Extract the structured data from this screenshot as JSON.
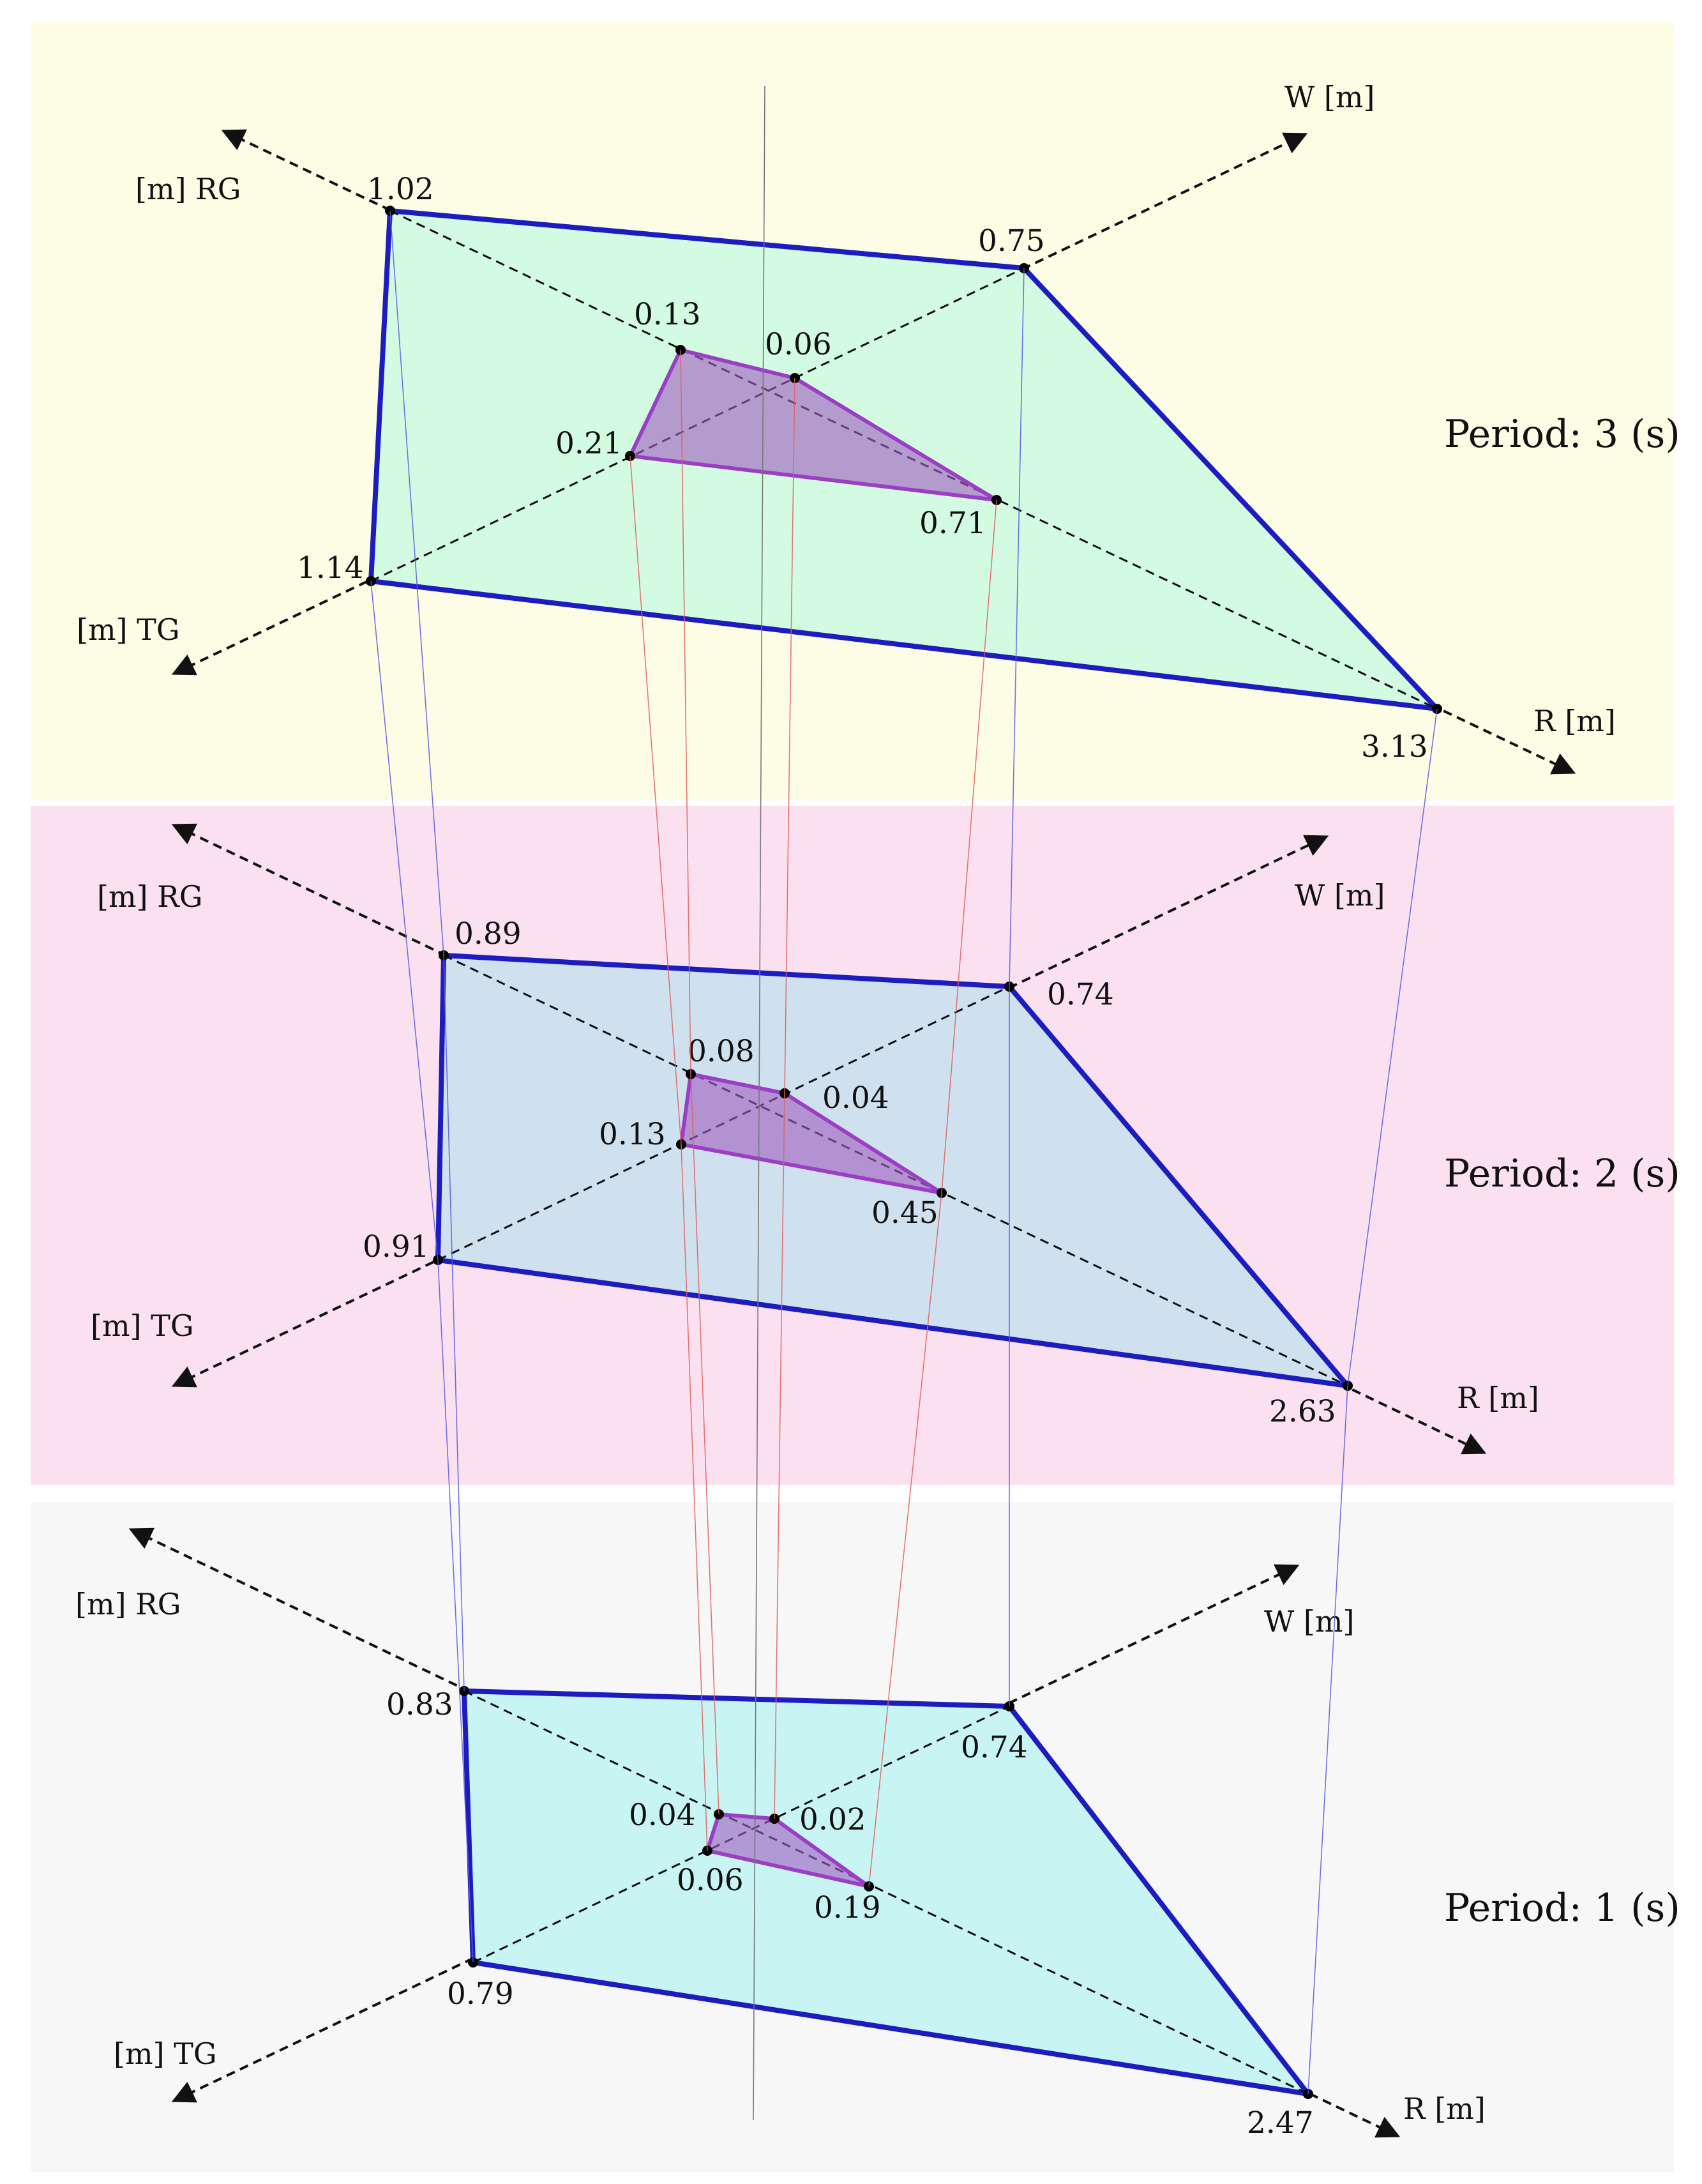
{
  "panels": [
    {
      "id": "period-3",
      "background": "#fdfde5",
      "period_label": "Period: 3 (s)",
      "axis_labels": {
        "rg": "[m] RG",
        "tg": "[m] TG",
        "w": "W [m]",
        "r": "R [m]"
      },
      "outer_values": {
        "rg": "1.02",
        "w": "0.75",
        "tg": "1.14",
        "r": "3.13"
      },
      "inner_values": {
        "rg": "0.13",
        "w": "0.06",
        "tg": "0.21",
        "r": "0.71"
      },
      "outer_fill": "#d2fbe2"
    },
    {
      "id": "period-2",
      "background": "#fbe1ef",
      "period_label": "Period: 2 (s)",
      "axis_labels": {
        "rg": "[m] RG",
        "tg": "[m] TG",
        "w": "W [m]",
        "r": "R [m]"
      },
      "outer_values": {
        "rg": "0.89",
        "w": "0.74",
        "tg": "0.91",
        "r": "2.63"
      },
      "inner_values": {
        "rg": "0.08",
        "w": "0.04",
        "tg": "0.13",
        "r": "0.45"
      },
      "outer_fill": "#cfe0ee"
    },
    {
      "id": "period-1",
      "background": "#f7f7f7",
      "period_label": "Period: 1 (s)",
      "axis_labels": {
        "rg": "[m] RG",
        "tg": "[m] TG",
        "w": "W [m]",
        "r": "R [m]"
      },
      "outer_values": {
        "rg": "0.83",
        "w": "0.74",
        "tg": "0.79",
        "r": "2.47"
      },
      "inner_values": {
        "rg": "0.04",
        "w": "0.02",
        "tg": "0.06",
        "r": "0.19"
      },
      "outer_fill": "#c8f5f4"
    }
  ],
  "colors": {
    "outer_stroke": "#1d1dbf",
    "inner_stroke": "#9a3fc4",
    "inner_fill": "#a05bc0",
    "axis": "#111111",
    "outer_connector": "#5a5ae0",
    "inner_connector": "#e06060",
    "center_line": "#777777"
  }
}
